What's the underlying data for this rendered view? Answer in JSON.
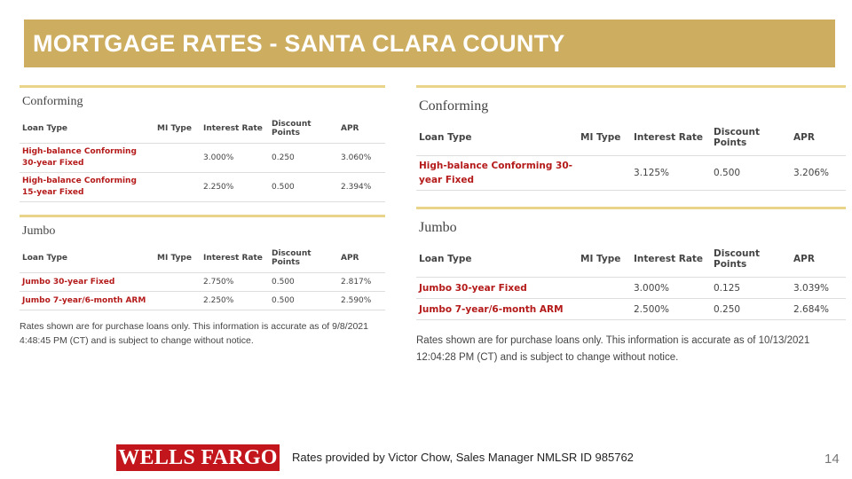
{
  "title": "MORTGAGE RATES - SANTA CLARA COUNTY",
  "headers": {
    "loan_type": "Loan Type",
    "mi_type": "MI Type",
    "interest_rate": "Interest Rate",
    "discount_points": "Discount Points",
    "apr": "APR"
  },
  "left": {
    "conforming": {
      "title": "Conforming",
      "rows": [
        {
          "loan_type": "High-balance Conforming 30-year Fixed",
          "mi_type": "",
          "rate": "3.000%",
          "points": "0.250",
          "apr": "3.060%"
        },
        {
          "loan_type": "High-balance Conforming 15-year Fixed",
          "mi_type": "",
          "rate": "2.250%",
          "points": "0.500",
          "apr": "2.394%"
        }
      ]
    },
    "jumbo": {
      "title": "Jumbo",
      "rows": [
        {
          "loan_type": "Jumbo 30-year Fixed",
          "mi_type": "",
          "rate": "2.750%",
          "points": "0.500",
          "apr": "2.817%"
        },
        {
          "loan_type": "Jumbo 7-year/6-month ARM",
          "mi_type": "",
          "rate": "2.250%",
          "points": "0.500",
          "apr": "2.590%"
        }
      ]
    },
    "note": "Rates shown are for purchase loans only. This information is accurate as of 9/8/2021 4:48:45 PM (CT) and is subject to change without notice."
  },
  "right": {
    "conforming": {
      "title": "Conforming",
      "rows": [
        {
          "loan_type": "High-balance Conforming 30-year Fixed",
          "mi_type": "",
          "rate": "3.125%",
          "points": "0.500",
          "apr": "3.206%"
        }
      ]
    },
    "jumbo": {
      "title": "Jumbo",
      "rows": [
        {
          "loan_type": "Jumbo 30-year Fixed",
          "mi_type": "",
          "rate": "3.000%",
          "points": "0.125",
          "apr": "3.039%"
        },
        {
          "loan_type": "Jumbo 7-year/6-month ARM",
          "mi_type": "",
          "rate": "2.500%",
          "points": "0.250",
          "apr": "2.684%"
        }
      ]
    },
    "note": "Rates shown are for purchase loans only. This information is accurate as of 10/13/2021 12:04:28 PM (CT) and is subject to change without notice."
  },
  "footer": {
    "logo_text": "WELLS FARGO",
    "credit": "Rates provided by Victor Chow, Sales Manager NMLSR ID 985762",
    "page_number": "14"
  },
  "colors": {
    "banner": "#cdad60",
    "section_rule": "#e9d489",
    "loan_name": "#b51a1a",
    "logo_bg": "#c3161c"
  }
}
